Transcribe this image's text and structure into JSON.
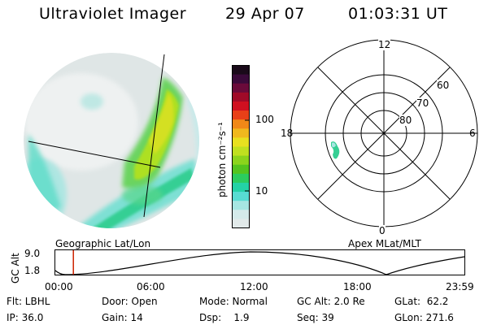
{
  "header": {
    "title": "Ultraviolet Imager",
    "date": "29 Apr 07",
    "time": "01:03:31 UT"
  },
  "colorbar": {
    "unit_label": "photon cm⁻²s⁻¹",
    "ticks": [
      "100",
      "10"
    ],
    "colors": [
      "#1a0a1a",
      "#3a0a3a",
      "#6a0a3a",
      "#a00a28",
      "#d01020",
      "#e84018",
      "#f08818",
      "#f0b81e",
      "#e8e020",
      "#c0e020",
      "#8cd41c",
      "#54c41e",
      "#2ccc5e",
      "#24d2a6",
      "#58dcd2",
      "#a6e6e2",
      "#d4eaea",
      "#e2eaea"
    ]
  },
  "polar_grid": {
    "mlt_labels": {
      "top": "12",
      "left": "18",
      "right": "6",
      "bottom": "0"
    },
    "lat_labels": [
      "60",
      "70",
      "80"
    ]
  },
  "captions": {
    "left": "Geographic Lat/Lon",
    "right": "Apex MLat/MLT"
  },
  "altitude_plot": {
    "ylabel": "GC Alt",
    "yticks": [
      "9.0",
      "1.8"
    ],
    "xticks": [
      "00:00",
      "06:00",
      "12:00",
      "18:00",
      "23:59"
    ],
    "current_time_hours": 1.06,
    "line_color": "#cc2200"
  },
  "info": {
    "flt": "Flt: LBHL",
    "ip": "IP: 36.0",
    "door": "Door: Open",
    "gain": "Gain: 14",
    "mode": "Mode: Normal",
    "dsp": "Dsp:    1.9",
    "gcalt": "GC Alt: 2.0 Re",
    "seq": "Seq: 39",
    "glat": "GLat:  62.2",
    "glon": "GLon: 271.6"
  }
}
